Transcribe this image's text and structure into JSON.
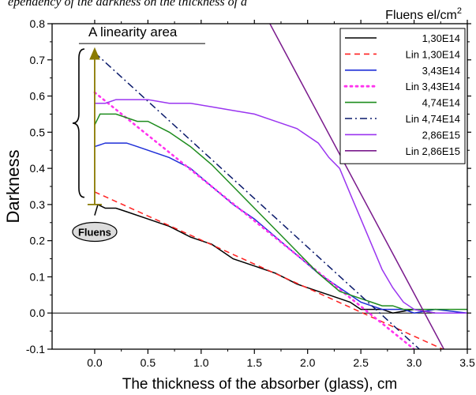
{
  "header": {
    "clipped_caption": "ependency of the darkness on the thickness of a"
  },
  "chart_data": {
    "type": "line",
    "title": "",
    "xlabel": "The thickness of the absorber (glass), cm",
    "ylabel": "Darkness",
    "xlim": [
      -0.4,
      3.5
    ],
    "ylim": [
      -0.1,
      0.8
    ],
    "xticks": [
      "0.0",
      "0.5",
      "1.0",
      "1.5",
      "2.0",
      "2.5",
      "3.0",
      "3.5"
    ],
    "yticks": [
      "-0.1",
      "0.0",
      "0.1",
      "0.2",
      "0.3",
      "0.4",
      "0.5",
      "0.6",
      "0.7",
      "0.8"
    ],
    "grid": false,
    "legend": {
      "title": "Fluens el/cm",
      "title_sup": "2",
      "position": "top-right"
    },
    "series": [
      {
        "name": "1,30E14",
        "color": "#000000",
        "dash": "solid",
        "x": [
          0.0,
          0.03,
          0.1,
          0.2,
          0.3,
          0.5,
          0.7,
          0.9,
          1.0,
          1.1,
          1.2,
          1.3,
          1.5,
          1.7,
          1.9,
          2.1,
          2.2,
          2.3,
          2.4,
          2.5,
          2.6,
          2.7,
          2.8,
          3.0,
          3.2,
          3.5
        ],
        "y": [
          0.27,
          0.3,
          0.29,
          0.29,
          0.28,
          0.26,
          0.24,
          0.21,
          0.2,
          0.19,
          0.17,
          0.15,
          0.13,
          0.11,
          0.08,
          0.06,
          0.05,
          0.04,
          0.03,
          0.01,
          0.01,
          0.01,
          0.0,
          0.01,
          0.0,
          0.0
        ]
      },
      {
        "name": "Lin 1,30E14",
        "color": "#ff2020",
        "dash": "dash",
        "x": [
          0.0,
          3.27
        ],
        "y": [
          0.335,
          -0.1
        ]
      },
      {
        "name": "3,43E14",
        "color": "#1f2fd8",
        "dash": "solid",
        "x": [
          0.0,
          0.1,
          0.2,
          0.3,
          0.4,
          0.5,
          0.7,
          0.9,
          1.1,
          1.3,
          1.5,
          1.7,
          1.9,
          2.1,
          2.3,
          2.4,
          2.5,
          2.6,
          2.7,
          2.8,
          2.9,
          3.0,
          3.2,
          3.5
        ],
        "y": [
          0.46,
          0.47,
          0.47,
          0.47,
          0.46,
          0.45,
          0.43,
          0.4,
          0.35,
          0.3,
          0.26,
          0.21,
          0.16,
          0.11,
          0.07,
          0.05,
          0.03,
          0.02,
          0.01,
          0.01,
          0.01,
          0.0,
          0.01,
          0.0
        ]
      },
      {
        "name": "Lin  3,43E14",
        "color": "#ff33ee",
        "dash": "dot",
        "x": [
          0.0,
          3.0
        ],
        "y": [
          0.61,
          -0.1
        ]
      },
      {
        "name": "4,74E14",
        "color": "#1e8c1e",
        "dash": "solid",
        "x": [
          0.0,
          0.05,
          0.1,
          0.2,
          0.3,
          0.4,
          0.5,
          0.7,
          0.9,
          1.1,
          1.3,
          1.5,
          1.7,
          1.9,
          2.1,
          2.3,
          2.5,
          2.6,
          2.7,
          2.8,
          2.9,
          3.0,
          3.2,
          3.5
        ],
        "y": [
          0.52,
          0.55,
          0.55,
          0.55,
          0.54,
          0.53,
          0.53,
          0.5,
          0.46,
          0.41,
          0.35,
          0.29,
          0.23,
          0.17,
          0.11,
          0.06,
          0.04,
          0.03,
          0.02,
          0.02,
          0.01,
          0.01,
          0.01,
          0.01
        ]
      },
      {
        "name": "Lin  4,74E14",
        "color": "#0a1a6b",
        "dash": "dashdot",
        "x": [
          0.0,
          3.05
        ],
        "y": [
          0.72,
          -0.1
        ]
      },
      {
        "name": "2,86E15",
        "color": "#9a35f0",
        "dash": "solid",
        "x": [
          0.0,
          0.1,
          0.2,
          0.3,
          0.5,
          0.7,
          0.9,
          1.1,
          1.3,
          1.5,
          1.7,
          1.9,
          2.1,
          2.2,
          2.3,
          2.4,
          2.5,
          2.6,
          2.7,
          2.8,
          2.9,
          3.0,
          3.2,
          3.5
        ],
        "y": [
          0.58,
          0.58,
          0.59,
          0.59,
          0.59,
          0.58,
          0.58,
          0.57,
          0.56,
          0.55,
          0.53,
          0.51,
          0.47,
          0.43,
          0.4,
          0.33,
          0.26,
          0.19,
          0.12,
          0.07,
          0.03,
          0.01,
          0.0,
          0.0
        ]
      },
      {
        "name": "Lin  2,86E15",
        "color": "#7a1a8c",
        "dash": "solid",
        "x": [
          1.5,
          3.28
        ],
        "y": [
          0.88,
          -0.1
        ]
      }
    ],
    "annotations": {
      "linearity_label": "A linearity area",
      "fluens_label": "Fluens",
      "arrow_x": 0.0,
      "arrow_from_y": 0.32,
      "arrow_to_y": 0.73,
      "brace_from_y": 0.32,
      "brace_to_y": 0.73,
      "arrow_color": "#8a7a00"
    }
  }
}
